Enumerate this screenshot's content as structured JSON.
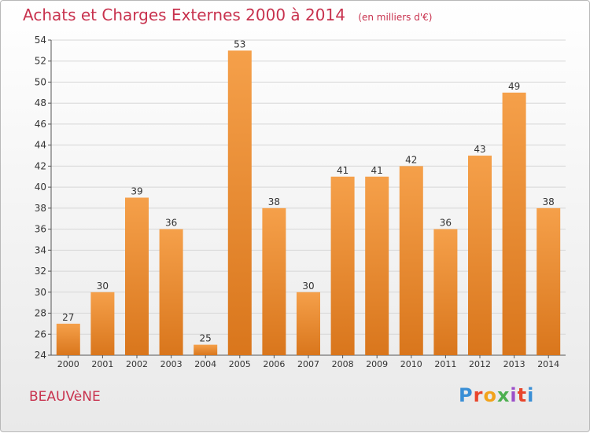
{
  "header": {
    "title": "Achats et Charges Externes 2000 à 2014",
    "unit": "(en milliers d'€)"
  },
  "footer": {
    "town": "BEAUVèNE",
    "logo": "Proxiti"
  },
  "colors": {
    "title": "#c8324e",
    "bar_light": "#f5a04a",
    "bar_dark": "#d9761c",
    "grid": "#d6d6d6",
    "axis": "#555555",
    "text": "#333333"
  },
  "chart_data": {
    "type": "bar",
    "title": "Achats et Charges Externes 2000 à 2014",
    "subtitle": "(en milliers d'€)",
    "categories": [
      "2000",
      "2001",
      "2002",
      "2003",
      "2004",
      "2005",
      "2006",
      "2007",
      "2008",
      "2009",
      "2010",
      "2011",
      "2012",
      "2013",
      "2014"
    ],
    "values": [
      27,
      30,
      39,
      36,
      25,
      53,
      38,
      30,
      41,
      41,
      42,
      36,
      43,
      49,
      38
    ],
    "ylim": [
      24,
      54
    ],
    "yticks": [
      24,
      26,
      28,
      30,
      32,
      34,
      36,
      38,
      40,
      42,
      44,
      46,
      48,
      50,
      52,
      54
    ],
    "grid": true,
    "data_labels": true
  }
}
